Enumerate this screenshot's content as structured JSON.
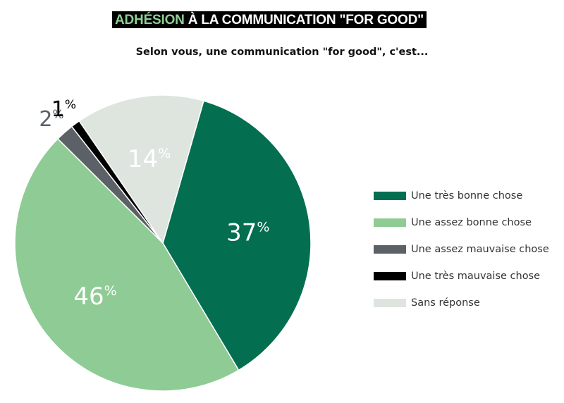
{
  "title": {
    "accent": "ADHÉSION",
    "rest": " À LA COMMUNICATION \"FOR GOOD\""
  },
  "subtitle": "Selon vous, une communication \"for good\", c'est...",
  "chart_data": {
    "type": "pie",
    "categories": [
      "Une très bonne chose",
      "Une assez bonne chose",
      "Une assez mauvaise chose",
      "Une très mauvaise chose",
      "Sans réponse"
    ],
    "values": [
      37,
      46,
      2,
      1,
      14
    ],
    "labels": [
      {
        "num": "37",
        "unit": "%"
      },
      {
        "num": "46",
        "unit": "%"
      },
      {
        "num": "2",
        "unit": "%"
      },
      {
        "num": "1",
        "unit": "%"
      },
      {
        "num": "14",
        "unit": "%"
      }
    ],
    "colors": [
      "#046e50",
      "#8fcb94",
      "#5b6166",
      "#000000",
      "#dde5de"
    ],
    "label_colors": [
      "#ffffff",
      "#ffffff",
      "#5b6166",
      "#000000",
      "#ffffff"
    ],
    "legend_position": "right"
  }
}
